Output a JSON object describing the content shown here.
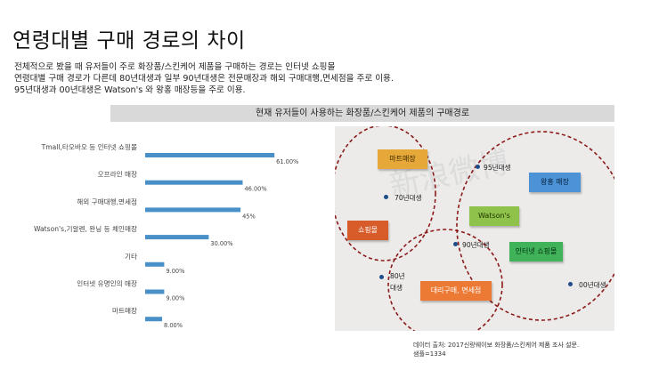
{
  "page": {
    "title": "연령대별 구매 경로의 차이",
    "description": [
      "전체적으로 봤을 때 유저들이 주로 화장품/스킨케어 제품을 구매하는 경로는 인터넷 쇼핑몰",
      "연령대별 구매 경로가 다른데 80년대생과 일부 90년대생은 전문매장과 해외 구매대행,면세점을 주로 이용.",
      "95년대생과 00년대생은 Watson's 와 왕홍 매장등을 주로 이용."
    ],
    "chart_header": "현재 유저들이 사용하는 화장품/스킨케어 제품의 구매경로",
    "source_lines": [
      "데이터 출처: 2017신랑웨이보 화장품/스킨케어 제품 조사 설문.",
      "샘플=1334"
    ]
  },
  "chart_data": {
    "type": "bar",
    "orientation": "horizontal",
    "categories": [
      "Tmall,타오바오 등 인터넷 쇼핑몰",
      "오프라인 매장",
      "해외 구매대행,면세점",
      "Watson's,기알렌, 완닝 등 체인매장",
      "기타",
      "인터넷 유명인의 매장",
      "마트매장"
    ],
    "values": [
      61.0,
      46.0,
      45,
      30.0,
      9.0,
      9.0,
      8.0
    ],
    "value_labels": [
      "61.00%",
      "46.00%",
      "45%",
      "30.00%",
      "9.00%",
      "9.00%",
      "8.00%"
    ],
    "xlim": [
      0,
      100
    ],
    "grid": false,
    "legend": "none",
    "bar_color": "#4a90c8"
  },
  "venn": {
    "watermark": "新浪微博",
    "tags": {
      "mart": "마트매장",
      "royal": "왕홍 매장",
      "watsons": "Watson's",
      "shop": "쇼핑몰",
      "online": "인터넷 쇼핑몰",
      "duty": "대리구매, 면세점"
    },
    "generations": {
      "g95": "95년대생",
      "g70": "70년대생",
      "g90": "90년대생",
      "g80a": "80년",
      "g80b": "대생",
      "g00": "00년대생"
    },
    "colors": {
      "circle": "#8b1a1a",
      "dot": "#1f4d8a"
    }
  }
}
